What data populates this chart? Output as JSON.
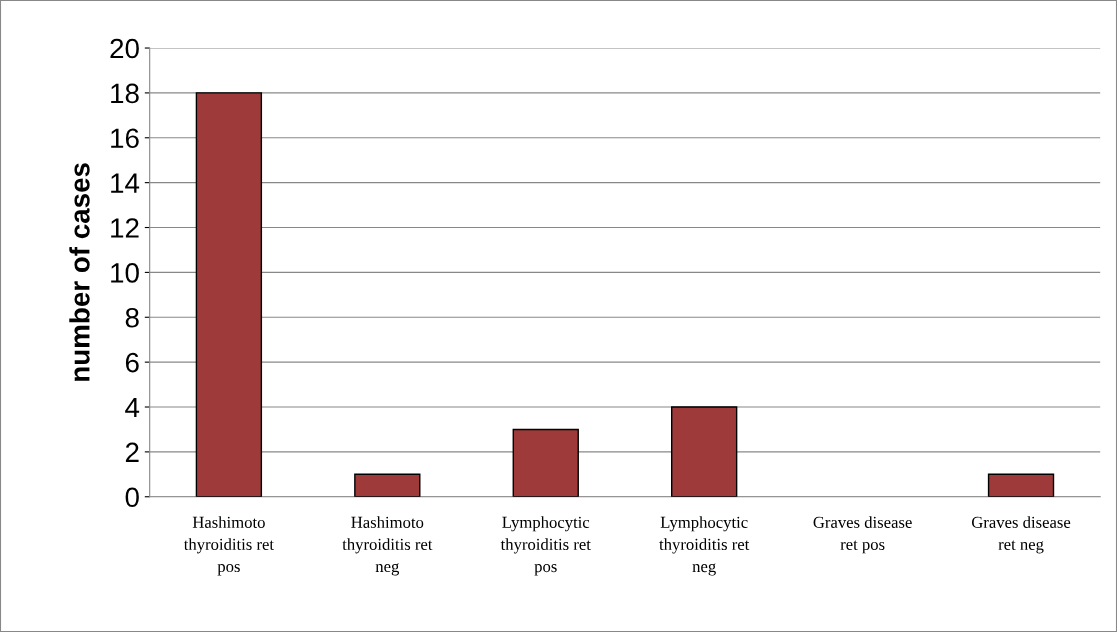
{
  "chart_data": {
    "type": "bar",
    "ylabel": "number of cases",
    "categories": [
      "Hashimoto\nthyroiditis ret\npos",
      "Hashimoto\nthyroiditis ret\nneg",
      "Lymphocytic\nthyroiditis ret\npos",
      "Lymphocytic\nthyroiditis ret\nneg",
      "Graves disease\nret pos",
      "Graves disease\nret neg"
    ],
    "values": [
      18,
      1,
      3,
      4,
      0,
      1
    ],
    "color": "#9e3a3a",
    "ylim": [
      0,
      20
    ],
    "yticks": [
      0,
      2,
      4,
      6,
      8,
      10,
      12,
      14,
      16,
      18,
      20
    ],
    "grid": "y",
    "legend": false
  }
}
